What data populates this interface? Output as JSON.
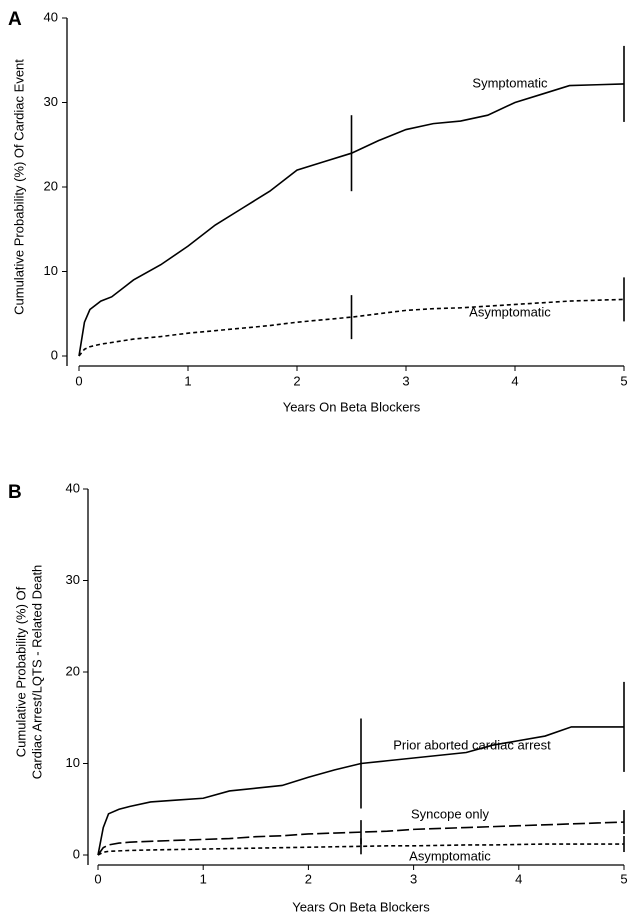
{
  "chart_data": [
    {
      "type": "line",
      "panel_label": "A",
      "ylabel": [
        "Cumulative Probability (%) Of Cardiac Event"
      ],
      "xlabel": "Years On Beta Blockers",
      "x": [
        0,
        0.05,
        0.1,
        0.2,
        0.3,
        0.5,
        0.75,
        1,
        1.25,
        1.5,
        1.75,
        2,
        2.25,
        2.5,
        2.75,
        3,
        3.25,
        3.5,
        3.75,
        4,
        4.25,
        4.5,
        4.75,
        5
      ],
      "xlim": [
        0,
        5
      ],
      "xticks": [
        0,
        1,
        2,
        3,
        4,
        5
      ],
      "ylim": [
        0,
        40
      ],
      "yticks": [
        0,
        10,
        20,
        30,
        40
      ],
      "series": [
        {
          "name": "Symptomatic",
          "color": "#000000",
          "style": "solid",
          "values": [
            0,
            4,
            5.5,
            6.5,
            7,
            9,
            10.8,
            13,
            15.5,
            17.5,
            19.5,
            22,
            23,
            24,
            25.5,
            26.8,
            27.5,
            27.8,
            28.5,
            30,
            31,
            32,
            32.1,
            32.2
          ]
        },
        {
          "name": "Asymptomatic",
          "color": "#000000",
          "style": "dashed",
          "values": [
            0,
            0.8,
            1.1,
            1.4,
            1.6,
            2,
            2.3,
            2.7,
            3,
            3.3,
            3.6,
            4,
            4.3,
            4.6,
            5,
            5.4,
            5.6,
            5.7,
            5.9,
            6.1,
            6.3,
            6.5,
            6.6,
            6.7
          ]
        }
      ]
    },
    {
      "type": "line",
      "panel_label": "B",
      "ylabel": [
        "Cumulative Probability (%) Of",
        "Cardiac Arrest/LQTS - Related Death"
      ],
      "xlabel": "Years On Beta Blockers",
      "x": [
        0,
        0.05,
        0.1,
        0.2,
        0.3,
        0.5,
        0.75,
        1,
        1.25,
        1.5,
        1.75,
        2,
        2.25,
        2.5,
        2.75,
        3,
        3.25,
        3.5,
        3.75,
        4,
        4.25,
        4.5,
        4.75,
        5
      ],
      "xlim": [
        0,
        5
      ],
      "xticks": [
        0,
        1,
        2,
        3,
        4,
        5
      ],
      "ylim": [
        0,
        40
      ],
      "yticks": [
        0,
        10,
        20,
        30,
        40
      ],
      "series": [
        {
          "name": "Prior aborted cardiac arrest",
          "color": "#000000",
          "style": "solid",
          "values": [
            0,
            3,
            4.5,
            5,
            5.3,
            5.8,
            6,
            6.2,
            7,
            7.3,
            7.6,
            8.5,
            9.3,
            10,
            10.3,
            10.6,
            10.9,
            11.2,
            12,
            12.5,
            13,
            14,
            14,
            14
          ]
        },
        {
          "name": "Syncope only",
          "color": "#000000",
          "style": "long-dashed",
          "values": [
            0,
            0.8,
            1.1,
            1.3,
            1.4,
            1.5,
            1.6,
            1.7,
            1.8,
            2,
            2.1,
            2.3,
            2.4,
            2.5,
            2.6,
            2.8,
            2.9,
            3,
            3.1,
            3.2,
            3.3,
            3.4,
            3.5,
            3.6
          ]
        },
        {
          "name": "Asymptomatic",
          "color": "#000000",
          "style": "dashed",
          "values": [
            0,
            0.3,
            0.4,
            0.45,
            0.5,
            0.55,
            0.6,
            0.65,
            0.7,
            0.75,
            0.8,
            0.85,
            0.9,
            0.95,
            1,
            1,
            1.05,
            1.1,
            1.1,
            1.15,
            1.2,
            1.2,
            1.2,
            1.2
          ]
        }
      ]
    }
  ]
}
